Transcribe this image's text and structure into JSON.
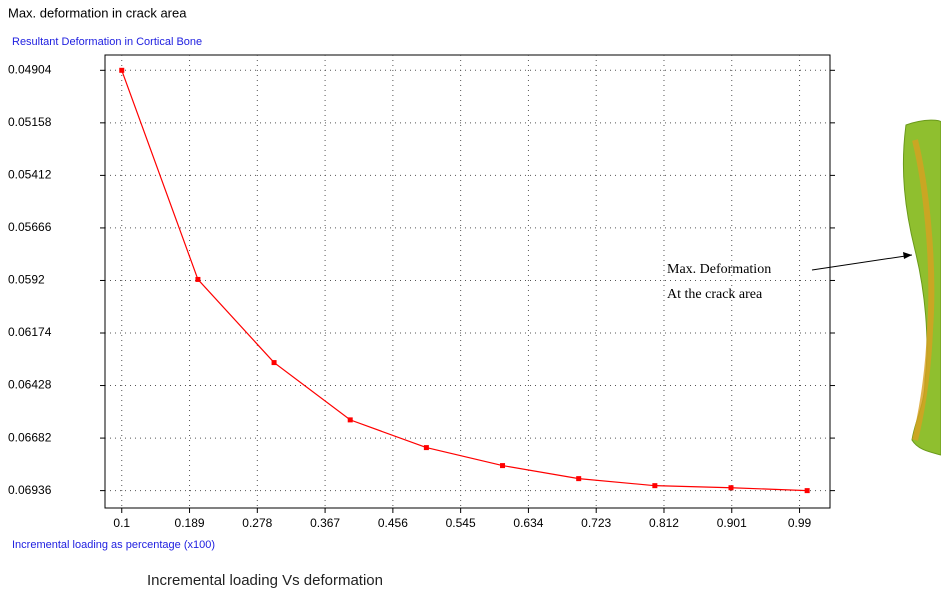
{
  "chart_data": {
    "type": "line",
    "title": "Max. deformation in crack area",
    "subtitle": "Resultant Deformation in Cortical Bone",
    "x_label": "Incremental loading as percentage (x100)",
    "caption": "Incremental loading Vs deformation",
    "annotation": [
      "Max. Deformation",
      "At the crack area"
    ],
    "x": [
      0.1,
      0.2,
      0.3,
      0.4,
      0.5,
      0.6,
      0.7,
      0.8,
      0.9,
      1.0
    ],
    "series": [
      {
        "name": "Resultant Deformation in Cortical Bone",
        "color": "#ff0000",
        "values": [
          0.04904,
          0.05915,
          0.06317,
          0.06594,
          0.06728,
          0.06815,
          0.06878,
          0.06912,
          0.06922,
          0.06936
        ]
      }
    ],
    "xlim": [
      0.078,
      1.03
    ],
    "ylim": [
      0.0483,
      0.0702
    ],
    "y_inverted": true,
    "xticks": [
      0.1,
      0.189,
      0.278,
      0.367,
      0.456,
      0.545,
      0.634,
      0.723,
      0.812,
      0.901,
      0.99
    ],
    "yticks": [
      0.04904,
      0.05158,
      0.05412,
      0.05666,
      0.0592,
      0.06174,
      0.06428,
      0.06682,
      0.06936
    ],
    "grid": true
  }
}
